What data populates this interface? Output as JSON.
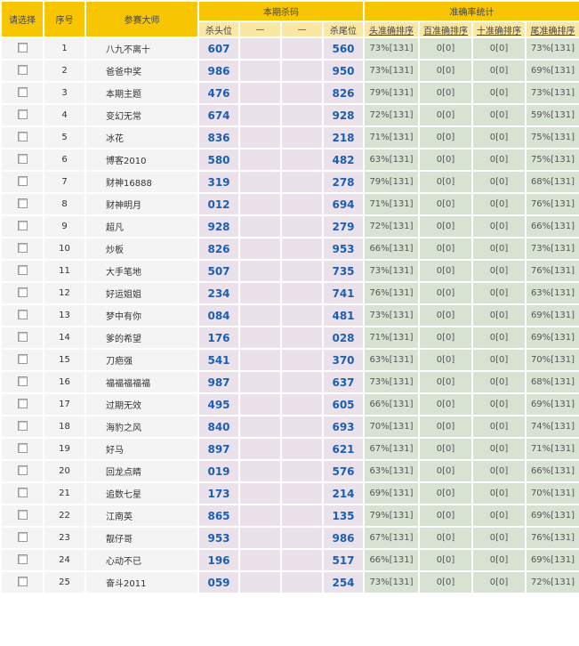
{
  "header": {
    "select": "请选择",
    "index": "序号",
    "master": "参赛大师",
    "kill_group": "本期杀码",
    "stats_group": "准确率统计",
    "kill_head": "杀头位",
    "dash1": "—",
    "dash2": "—",
    "kill_tail": "杀尾位",
    "sort_head": "头准确排序",
    "sort_hundred": "百准确排序",
    "sort_ten": "十准确排序",
    "sort_tail": "尾准确排序"
  },
  "rows": [
    {
      "no": "1",
      "name": "八九不离十",
      "head": "607",
      "tail": "560",
      "s1": "73%[131]",
      "s2": "0[0]",
      "s3": "0[0]",
      "s4": "73%[131]"
    },
    {
      "no": "2",
      "name": "爸爸中奖",
      "head": "986",
      "tail": "950",
      "s1": "73%[131]",
      "s2": "0[0]",
      "s3": "0[0]",
      "s4": "69%[131]"
    },
    {
      "no": "3",
      "name": "本期主题",
      "head": "476",
      "tail": "826",
      "s1": "79%[131]",
      "s2": "0[0]",
      "s3": "0[0]",
      "s4": "73%[131]"
    },
    {
      "no": "4",
      "name": "变幻无常",
      "head": "674",
      "tail": "928",
      "s1": "72%[131]",
      "s2": "0[0]",
      "s3": "0[0]",
      "s4": "59%[131]"
    },
    {
      "no": "5",
      "name": "冰花",
      "head": "836",
      "tail": "218",
      "s1": "71%[131]",
      "s2": "0[0]",
      "s3": "0[0]",
      "s4": "75%[131]"
    },
    {
      "no": "6",
      "name": "博客2010",
      "head": "580",
      "tail": "482",
      "s1": "63%[131]",
      "s2": "0[0]",
      "s3": "0[0]",
      "s4": "75%[131]"
    },
    {
      "no": "7",
      "name": "财神16888",
      "head": "319",
      "tail": "278",
      "s1": "79%[131]",
      "s2": "0[0]",
      "s3": "0[0]",
      "s4": "68%[131]"
    },
    {
      "no": "8",
      "name": "财神明月",
      "head": "012",
      "tail": "694",
      "s1": "71%[131]",
      "s2": "0[0]",
      "s3": "0[0]",
      "s4": "76%[131]"
    },
    {
      "no": "9",
      "name": "超凡",
      "head": "928",
      "tail": "279",
      "s1": "72%[131]",
      "s2": "0[0]",
      "s3": "0[0]",
      "s4": "66%[131]"
    },
    {
      "no": "10",
      "name": "炒板",
      "head": "826",
      "tail": "953",
      "s1": "66%[131]",
      "s2": "0[0]",
      "s3": "0[0]",
      "s4": "73%[131]"
    },
    {
      "no": "11",
      "name": "大手笔地",
      "head": "507",
      "tail": "735",
      "s1": "73%[131]",
      "s2": "0[0]",
      "s3": "0[0]",
      "s4": "76%[131]"
    },
    {
      "no": "12",
      "name": "好运姐姐",
      "head": "234",
      "tail": "741",
      "s1": "76%[131]",
      "s2": "0[0]",
      "s3": "0[0]",
      "s4": "63%[131]"
    },
    {
      "no": "13",
      "name": "梦中有你",
      "head": "084",
      "tail": "481",
      "s1": "73%[131]",
      "s2": "0[0]",
      "s3": "0[0]",
      "s4": "69%[131]"
    },
    {
      "no": "14",
      "name": "爹的希望",
      "head": "176",
      "tail": "028",
      "s1": "71%[131]",
      "s2": "0[0]",
      "s3": "0[0]",
      "s4": "69%[131]"
    },
    {
      "no": "15",
      "name": "刀疤强",
      "head": "541",
      "tail": "370",
      "s1": "63%[131]",
      "s2": "0[0]",
      "s3": "0[0]",
      "s4": "70%[131]"
    },
    {
      "no": "16",
      "name": "福福福福福",
      "head": "987",
      "tail": "637",
      "s1": "73%[131]",
      "s2": "0[0]",
      "s3": "0[0]",
      "s4": "68%[131]"
    },
    {
      "no": "17",
      "name": "过期无效",
      "head": "495",
      "tail": "605",
      "s1": "66%[131]",
      "s2": "0[0]",
      "s3": "0[0]",
      "s4": "69%[131]"
    },
    {
      "no": "18",
      "name": "海豹之风",
      "head": "840",
      "tail": "693",
      "s1": "70%[131]",
      "s2": "0[0]",
      "s3": "0[0]",
      "s4": "74%[131]"
    },
    {
      "no": "19",
      "name": "好马",
      "head": "897",
      "tail": "621",
      "s1": "67%[131]",
      "s2": "0[0]",
      "s3": "0[0]",
      "s4": "71%[131]"
    },
    {
      "no": "20",
      "name": "回龙点睛",
      "head": "019",
      "tail": "576",
      "s1": "63%[131]",
      "s2": "0[0]",
      "s3": "0[0]",
      "s4": "66%[131]"
    },
    {
      "no": "21",
      "name": "追数七星",
      "head": "173",
      "tail": "214",
      "s1": "69%[131]",
      "s2": "0[0]",
      "s3": "0[0]",
      "s4": "70%[131]"
    },
    {
      "no": "22",
      "name": "江南英",
      "head": "865",
      "tail": "135",
      "s1": "79%[131]",
      "s2": "0[0]",
      "s3": "0[0]",
      "s4": "69%[131]"
    },
    {
      "no": "23",
      "name": "靓仔哥",
      "head": "953",
      "tail": "986",
      "s1": "67%[131]",
      "s2": "0[0]",
      "s3": "0[0]",
      "s4": "76%[131]"
    },
    {
      "no": "24",
      "name": "心动不已",
      "head": "196",
      "tail": "517",
      "s1": "66%[131]",
      "s2": "0[0]",
      "s3": "0[0]",
      "s4": "69%[131]"
    },
    {
      "no": "25",
      "name": "奋斗2011",
      "head": "059",
      "tail": "254",
      "s1": "73%[131]",
      "s2": "0[0]",
      "s3": "0[0]",
      "s4": "72%[131]"
    }
  ]
}
